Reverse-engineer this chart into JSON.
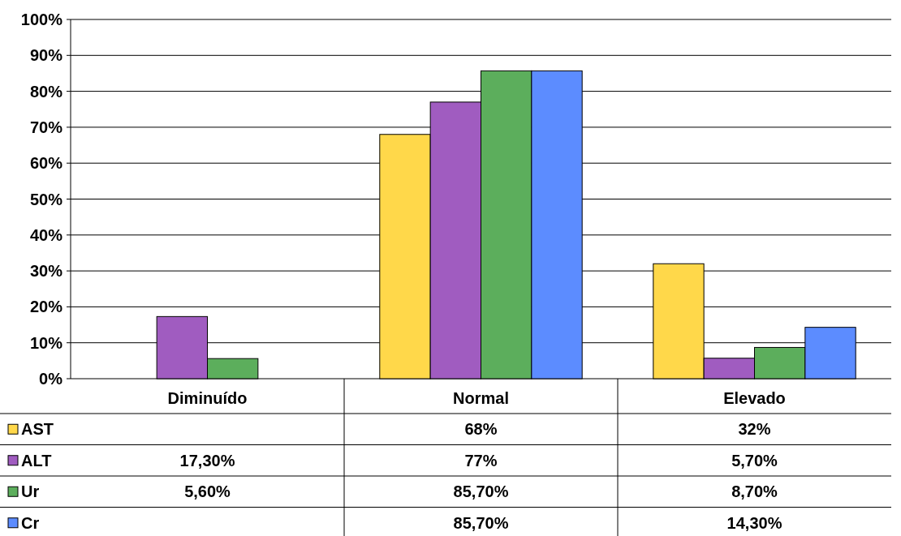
{
  "chart_data": {
    "type": "bar",
    "categories": [
      "Diminuído",
      "Normal",
      "Elevado"
    ],
    "series": [
      {
        "name": "AST",
        "color": "#ffd84a",
        "values": [
          null,
          68,
          32
        ],
        "value_labels": [
          null,
          "68%",
          "32%"
        ]
      },
      {
        "name": "ALT",
        "color": "#a05cc0",
        "values": [
          17.3,
          77,
          5.7
        ],
        "value_labels": [
          "17,30%",
          "77%",
          "5,70%"
        ]
      },
      {
        "name": "Ur",
        "color": "#5cae5c",
        "values": [
          5.6,
          85.7,
          8.7
        ],
        "value_labels": [
          "5,60%",
          "85,70%",
          "8,70%"
        ]
      },
      {
        "name": "Cr",
        "color": "#5c8cff",
        "values": [
          null,
          85.7,
          14.3
        ],
        "value_labels": [
          null,
          "85,70%",
          "14,30%"
        ]
      }
    ],
    "ylim": [
      0,
      100
    ],
    "yticks": [
      {
        "value": 0,
        "label": "0%"
      },
      {
        "value": 10,
        "label": "10%"
      },
      {
        "value": 20,
        "label": "20%"
      },
      {
        "value": 30,
        "label": "30%"
      },
      {
        "value": 40,
        "label": "40%"
      },
      {
        "value": 50,
        "label": "50%"
      },
      {
        "value": 60,
        "label": "60%"
      },
      {
        "value": 70,
        "label": "70%"
      },
      {
        "value": 80,
        "label": "80%"
      },
      {
        "value": 90,
        "label": "90%"
      },
      {
        "value": 100,
        "label": "100%"
      }
    ],
    "grid": "y",
    "legend": "bottom"
  }
}
